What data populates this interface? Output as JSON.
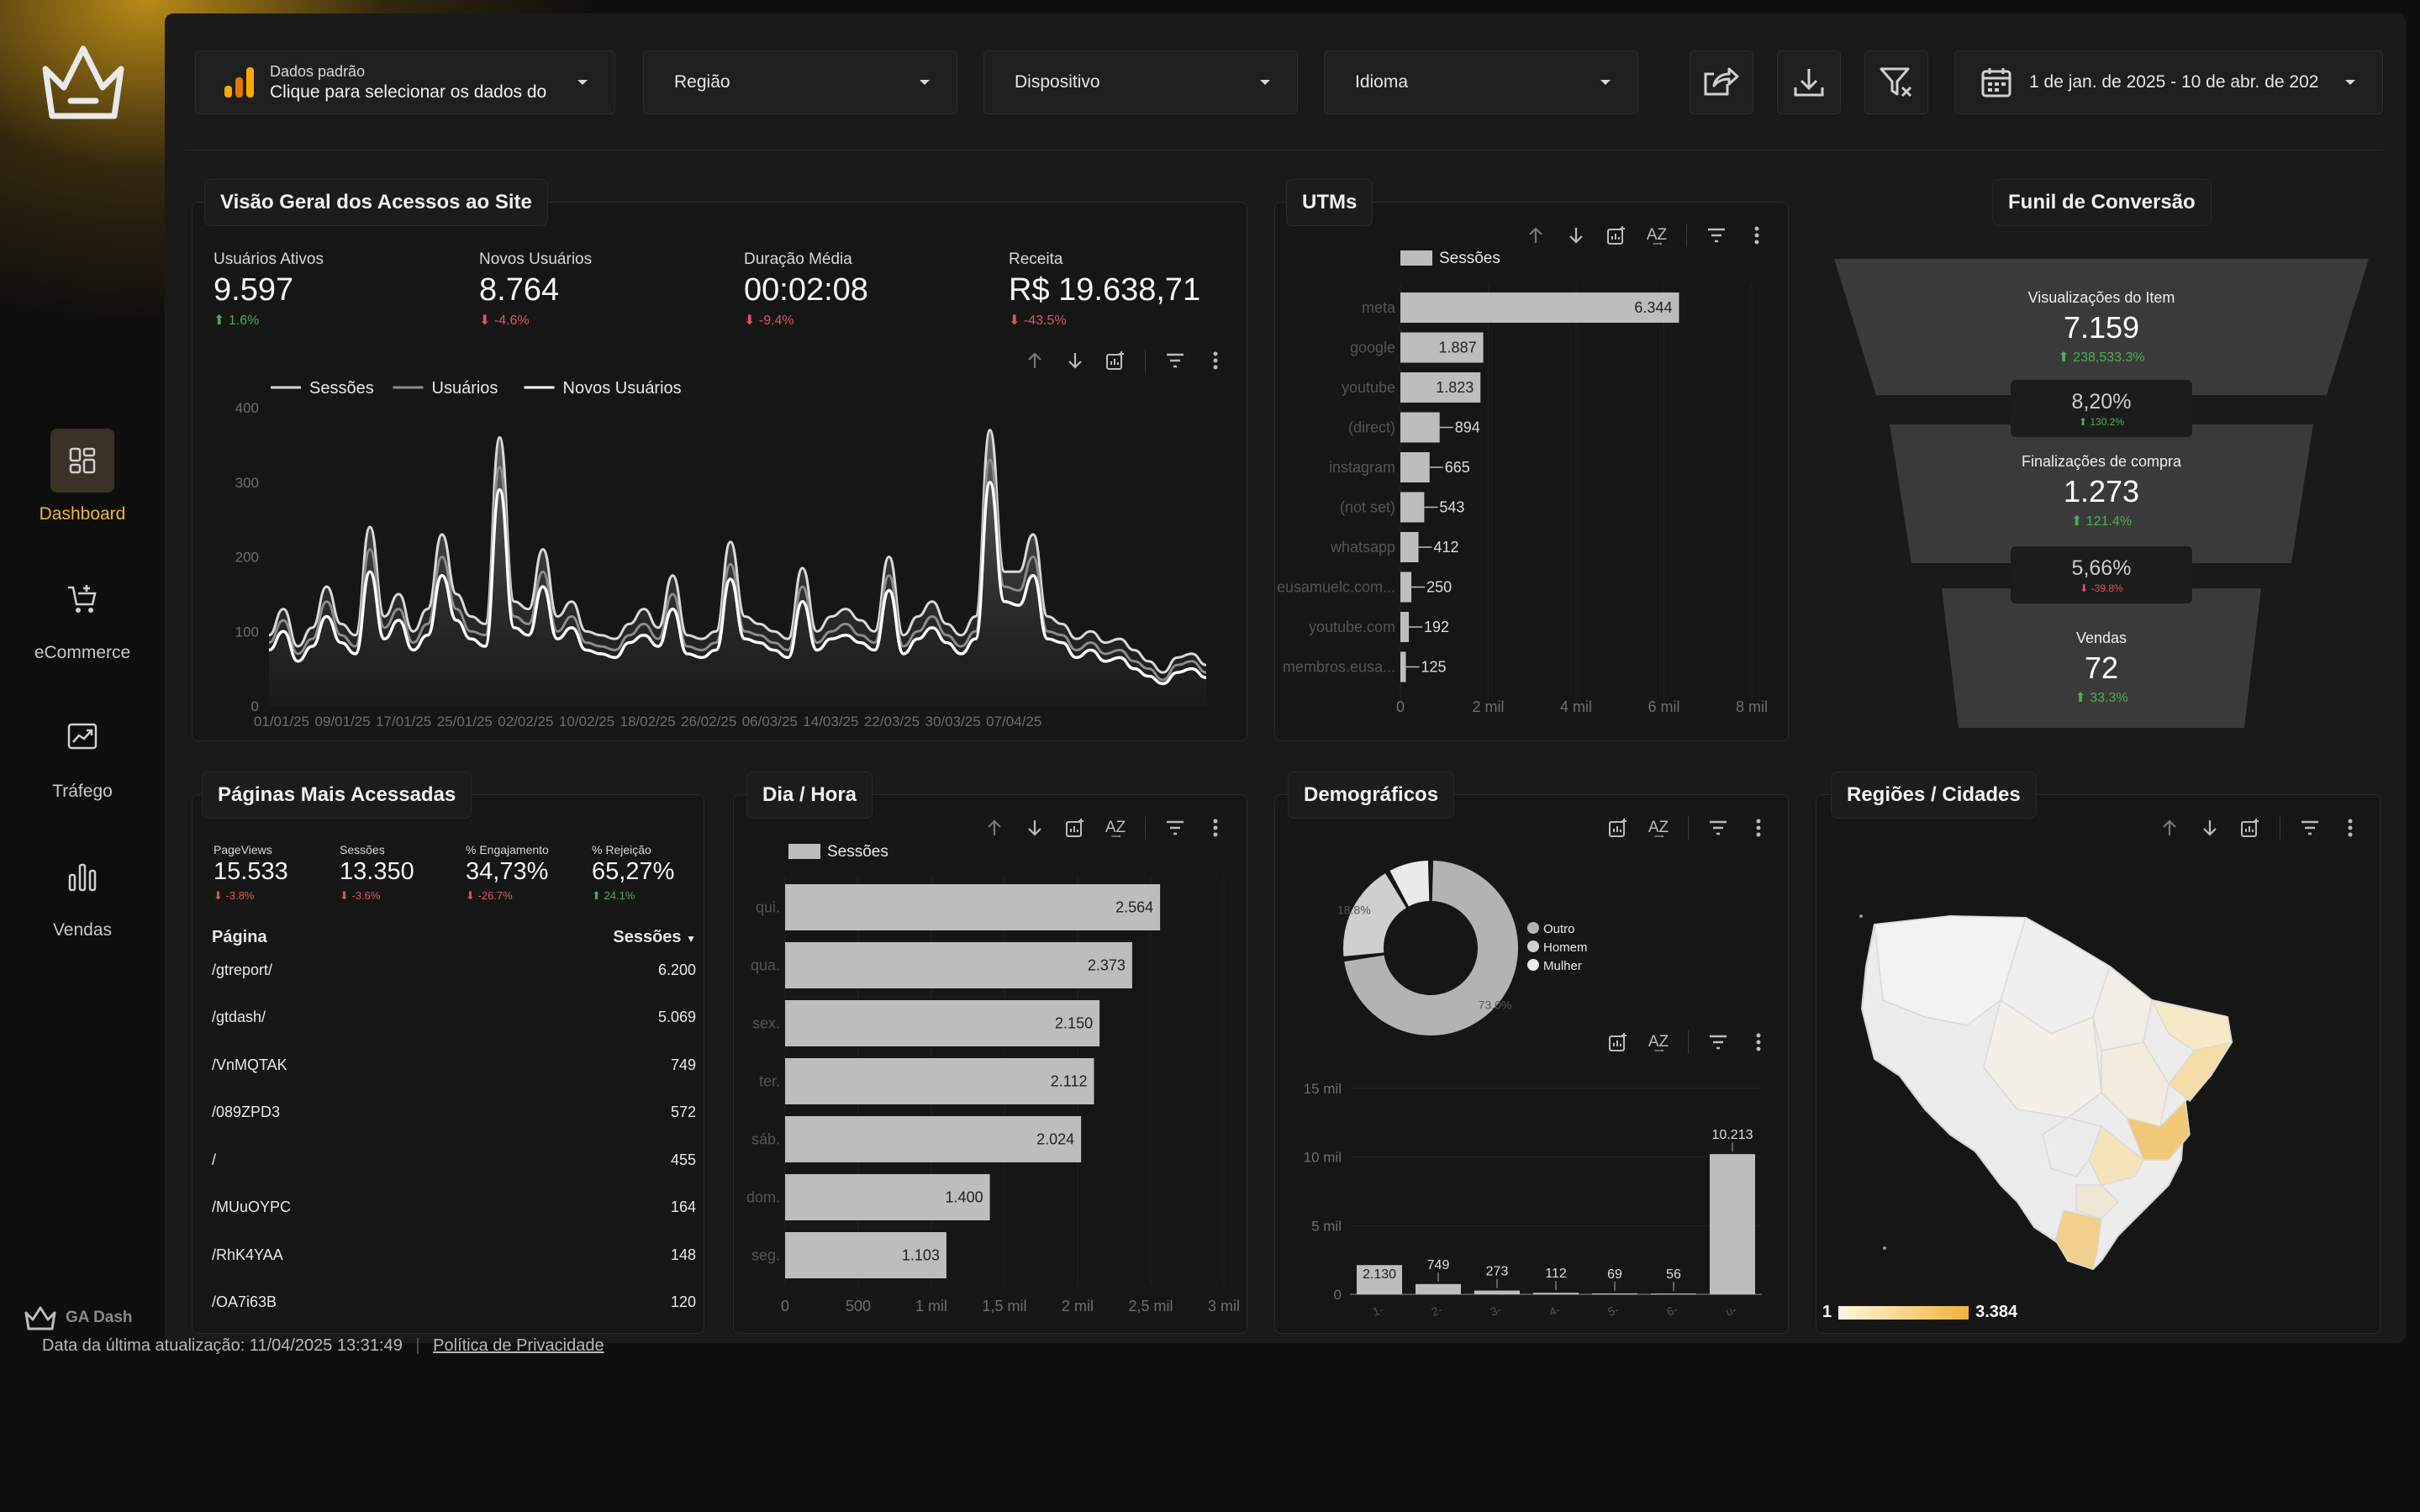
{
  "sidebar": {
    "items": [
      {
        "label": "Dashboard",
        "icon": "dashboard-icon",
        "active": true
      },
      {
        "label": "eCommerce",
        "icon": "cart-icon",
        "active": false
      },
      {
        "label": "Tráfego",
        "icon": "traffic-icon",
        "active": false
      },
      {
        "label": "Vendas",
        "icon": "bar-chart-icon",
        "active": false
      }
    ],
    "brand": "GA Dash"
  },
  "filters": {
    "data_source_title": "Dados padrão",
    "data_source_sub": "Clique para selecionar os dados do",
    "region": "Região",
    "device": "Dispositivo",
    "language": "Idioma",
    "date_range": "1 de jan. de 2025 - 10 de abr. de 202"
  },
  "overview": {
    "title": "Visão Geral dos Acessos ao Site",
    "kpis": [
      {
        "label": "Usuários Ativos",
        "value": "9.597",
        "delta": "1.6%",
        "dir": "up"
      },
      {
        "label": "Novos Usuários",
        "value": "8.764",
        "delta": "-4.6%",
        "dir": "dn"
      },
      {
        "label": "Duração Média",
        "value": "00:02:08",
        "delta": "-9.4%",
        "dir": "dn"
      },
      {
        "label": "Receita",
        "value": "R$ 19.638,71",
        "delta": "-43.5%",
        "dir": "dn"
      }
    ]
  },
  "utms": {
    "title": "UTMs"
  },
  "funnel": {
    "title": "Funil de Conversão",
    "stages": [
      {
        "label": "Visualizações do Item",
        "value": "7.159",
        "delta": "238,533.3%",
        "dir": "up"
      },
      {
        "label": "Finalizações de compra",
        "value": "1.273",
        "delta": "121.4%",
        "dir": "up"
      },
      {
        "label": "Vendas",
        "value": "72",
        "delta": "33.3%",
        "dir": "up"
      }
    ],
    "rates": [
      {
        "value": "8,20%",
        "delta": "130.2%",
        "dir": "up"
      },
      {
        "value": "5,66%",
        "delta": "-39.8%",
        "dir": "dn"
      }
    ]
  },
  "pages": {
    "title": "Páginas Mais Acessadas",
    "kpis": [
      {
        "label": "PageViews",
        "value": "15.533",
        "delta": "-3.8%",
        "dir": "dn"
      },
      {
        "label": "Sessões",
        "value": "13.350",
        "delta": "-3.6%",
        "dir": "dn"
      },
      {
        "label": "% Engajamento",
        "value": "34,73%",
        "delta": "-26.7%",
        "dir": "dn"
      },
      {
        "label": "% Rejeição",
        "value": "65,27%",
        "delta": "24.1%",
        "dir": "up"
      }
    ],
    "col_page": "Página",
    "col_sessions": "Sessões",
    "rows": [
      {
        "page": "/gtreport/",
        "sessions": "6.200"
      },
      {
        "page": "/gtdash/",
        "sessions": "5.069"
      },
      {
        "page": "/VnMQTAK",
        "sessions": "749"
      },
      {
        "page": "/089ZPD3",
        "sessions": "572"
      },
      {
        "page": "/",
        "sessions": "455"
      },
      {
        "page": "/MUuOYPC",
        "sessions": "164"
      },
      {
        "page": "/RhK4YAA",
        "sessions": "148"
      },
      {
        "page": "/OA7i63B",
        "sessions": "120"
      }
    ]
  },
  "dayhour": {
    "title": "Dia / Hora"
  },
  "demo": {
    "title": "Demográficos"
  },
  "regions": {
    "title": "Regiões / Cidades",
    "legend_min": "1",
    "legend_max": "3.384"
  },
  "footer": {
    "updated": "Data da última atualização: 11/04/2025 13:31:49",
    "privacy": "Política de Privacidade"
  },
  "chart_data": [
    {
      "type": "line",
      "series": [
        {
          "name": "Sessões",
          "values": [
            95,
            130,
            80,
            105,
            160,
            110,
            95,
            240,
            120,
            150,
            100,
            130,
            230,
            150,
            120,
            110,
            360,
            140,
            130,
            210,
            120,
            140,
            100,
            95,
            90,
            110,
            130,
            105,
            175,
            95,
            90,
            100,
            220,
            120,
            110,
            100,
            90,
            185,
            100,
            120,
            130,
            115,
            100,
            200,
            95,
            120,
            140,
            110,
            95,
            120,
            370,
            180,
            180,
            230,
            120,
            110,
            90,
            100,
            85,
            90,
            75,
            60,
            45,
            65,
            70,
            55
          ]
        },
        {
          "name": "Usuários",
          "values": [
            85,
            115,
            70,
            90,
            140,
            95,
            80,
            210,
            105,
            130,
            85,
            110,
            200,
            130,
            100,
            95,
            320,
            120,
            110,
            180,
            100,
            120,
            85,
            80,
            75,
            95,
            110,
            90,
            150,
            80,
            75,
            85,
            190,
            100,
            95,
            85,
            75,
            160,
            85,
            100,
            110,
            95,
            85,
            175,
            80,
            100,
            120,
            95,
            80,
            100,
            330,
            160,
            155,
            200,
            100,
            95,
            75,
            85,
            70,
            75,
            60,
            50,
            35,
            55,
            60,
            45
          ]
        },
        {
          "name": "Novos Usuários",
          "values": [
            75,
            100,
            60,
            80,
            120,
            85,
            70,
            180,
            90,
            115,
            75,
            95,
            175,
            115,
            90,
            80,
            290,
            105,
            95,
            160,
            90,
            105,
            75,
            70,
            65,
            85,
            95,
            80,
            130,
            70,
            65,
            75,
            170,
            90,
            85,
            75,
            65,
            140,
            75,
            90,
            95,
            85,
            75,
            155,
            70,
            90,
            105,
            85,
            70,
            90,
            300,
            140,
            135,
            175,
            90,
            85,
            65,
            75,
            60,
            65,
            50,
            40,
            30,
            45,
            50,
            38
          ]
        }
      ],
      "x_tick_labels": [
        "01/01/25",
        "09/01/25",
        "17/01/25",
        "25/01/25",
        "02/02/25",
        "10/02/25",
        "18/02/25",
        "26/02/25",
        "06/03/25",
        "14/03/25",
        "22/03/25",
        "30/03/25",
        "07/04/25"
      ],
      "y_ticks": [
        0,
        100,
        200,
        300,
        400
      ],
      "ylim": [
        0,
        400
      ]
    },
    {
      "type": "bar",
      "orientation": "horizontal",
      "series": [
        {
          "name": "Sessões"
        }
      ],
      "categories": [
        "meta",
        "google",
        "youtube",
        "(direct)",
        "instagram",
        "(not set)",
        "whatsapp",
        "eusamuelc.com...",
        "youtube.com",
        "membros.eusa..."
      ],
      "values": [
        6344,
        1887,
        1823,
        894,
        665,
        543,
        412,
        250,
        192,
        125
      ],
      "value_labels": [
        "6.344",
        "1.887",
        "1.823",
        "894",
        "665",
        "543",
        "412",
        "250",
        "192",
        "125"
      ],
      "x_tick_labels": [
        "0",
        "2 mil",
        "4 mil",
        "6 mil",
        "8 mil"
      ],
      "xlim": [
        0,
        8000
      ]
    },
    {
      "type": "bar",
      "orientation": "horizontal",
      "series": [
        {
          "name": "Sessões"
        }
      ],
      "categories": [
        "qui.",
        "qua.",
        "sex.",
        "ter.",
        "sáb.",
        "dom.",
        "seg."
      ],
      "values": [
        2564,
        2373,
        2150,
        2112,
        2024,
        1400,
        1103
      ],
      "value_labels": [
        "2.564",
        "2.373",
        "2.150",
        "2.112",
        "2.024",
        "1.400",
        "1.103"
      ],
      "x_tick_labels": [
        "0",
        "500",
        "1 mil",
        "1,5 mil",
        "2 mil",
        "2,5 mil",
        "3 mil"
      ],
      "xlim": [
        0,
        3000
      ]
    },
    {
      "type": "pie",
      "categories": [
        "Outro",
        "Homem",
        "Mulher"
      ],
      "values": [
        73.0,
        18.8,
        8.2
      ],
      "slice_labels": [
        "73.0%",
        "18.8%",
        ""
      ]
    },
    {
      "type": "bar",
      "categories": [
        "1-",
        "2-",
        "3-",
        "4-",
        "5-",
        "6-",
        "u-"
      ],
      "values": [
        2130,
        749,
        273,
        112,
        69,
        56,
        10213
      ],
      "value_labels": [
        "2.130",
        "749",
        "273",
        "112",
        "69",
        "56",
        "10.213"
      ],
      "y_tick_labels": [
        "0",
        "5 mil",
        "10 mil",
        "15 mil"
      ],
      "ylim": [
        0,
        15000
      ]
    }
  ]
}
